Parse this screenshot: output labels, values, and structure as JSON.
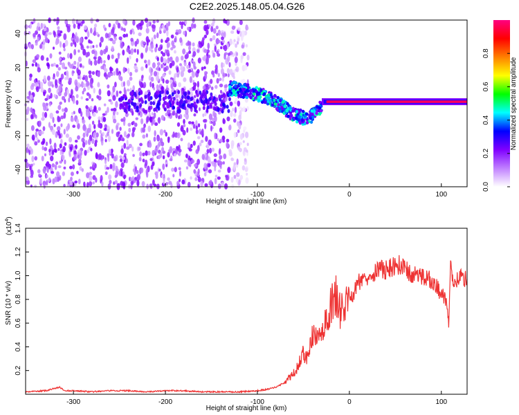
{
  "chart_data": [
    {
      "type": "heatmap",
      "title": "C2E2.2025.148.05.04.G26",
      "xlabel": "Height of straight line (km)",
      "ylabel": "Frequency (Hz)",
      "xlim": [
        -352,
        128
      ],
      "ylim": [
        -50,
        48
      ],
      "xticks": [
        -300,
        -200,
        -100,
        0,
        100
      ],
      "xtick_labels": [
        "-300",
        "-200",
        "-100",
        "0",
        "100"
      ],
      "yticks": [
        -40,
        -20,
        0,
        20,
        40
      ],
      "ytick_labels": [
        "-40",
        "-20",
        "0",
        "20",
        "40"
      ],
      "colorbar": {
        "label": "Normalized spectral amplitude",
        "range": [
          0,
          1
        ],
        "ticks": [
          0.0,
          0.2,
          0.4,
          0.6,
          0.8
        ],
        "tick_labels": [
          "0.0",
          "0.2",
          "0.4",
          "0.6",
          "0.8"
        ],
        "colors": [
          "#ffffff",
          "#c080ff",
          "#8000ff",
          "#0000ff",
          "#00ffff",
          "#00ff00",
          "#ffff00",
          "#ff8000",
          "#ff0000",
          "#ff0080"
        ]
      },
      "regions": [
        {
          "x_range": [
            -352,
            -130
          ],
          "description_level": 0.15,
          "freq_range": [
            -50,
            48
          ]
        },
        {
          "x_range": [
            -130,
            -30
          ],
          "description_level": 0.35,
          "freq_range": [
            -15,
            10
          ]
        },
        {
          "x_range": [
            -25,
            128
          ],
          "description_level": 0.95,
          "freq_range": [
            -2,
            2
          ]
        }
      ],
      "ridge": [
        {
          "x": -130,
          "y": 8
        },
        {
          "x": -110,
          "y": 6
        },
        {
          "x": -90,
          "y": 3
        },
        {
          "x": -75,
          "y": -2
        },
        {
          "x": -60,
          "y": -8
        },
        {
          "x": -45,
          "y": -10
        },
        {
          "x": -35,
          "y": -5
        },
        {
          "x": -25,
          "y": 0
        },
        {
          "x": 0,
          "y": 0
        },
        {
          "x": 60,
          "y": 0
        },
        {
          "x": 128,
          "y": 0
        }
      ],
      "grid": false,
      "legend": "right"
    },
    {
      "type": "line",
      "xlabel": "Height of straight line (km)",
      "ylabel": "SNR (10 * v/v)",
      "y_multiplier_label": "(x10",
      "y_multiplier_exp": "4",
      "y_multiplier_close": ")",
      "xlim": [
        -352,
        128
      ],
      "ylim": [
        0,
        1.4
      ],
      "xticks": [
        -300,
        -200,
        -100,
        0,
        100
      ],
      "xtick_labels": [
        "-300",
        "-200",
        "-100",
        "0",
        "100"
      ],
      "yticks": [
        0.2,
        0.4,
        0.6,
        0.8,
        1.0,
        1.2,
        1.4
      ],
      "ytick_labels": [
        "0.2",
        "0.4",
        "0.6",
        "0.8",
        "1.0",
        "1.2",
        "1.4"
      ],
      "color": "#ee3333",
      "series": [
        {
          "x": [
            -352,
            -330,
            -315,
            -310,
            -300,
            -280,
            -260,
            -240,
            -220,
            -200,
            -180,
            -160,
            -140,
            -120,
            -100,
            -90,
            -80,
            -70,
            -60,
            -55,
            -50,
            -45,
            -40,
            -35,
            -30,
            -25,
            -20,
            -15,
            -10,
            -5,
            0,
            5,
            10,
            20,
            30,
            40,
            50,
            55,
            60,
            70,
            80,
            90,
            100,
            105,
            108,
            110,
            115,
            120,
            128
          ],
          "y": [
            0.02,
            0.03,
            0.06,
            0.03,
            0.03,
            0.02,
            0.03,
            0.03,
            0.02,
            0.03,
            0.03,
            0.02,
            0.02,
            0.02,
            0.03,
            0.04,
            0.06,
            0.1,
            0.18,
            0.25,
            0.35,
            0.3,
            0.5,
            0.45,
            0.55,
            0.6,
            0.75,
            0.85,
            0.7,
            0.72,
            0.82,
            0.85,
            0.95,
            1.0,
            1.05,
            1.05,
            1.08,
            1.1,
            1.05,
            1.0,
            1.0,
            0.95,
            0.85,
            0.8,
            0.6,
            1.05,
            0.95,
            1.0,
            0.97
          ]
        }
      ],
      "grid": false
    }
  ]
}
